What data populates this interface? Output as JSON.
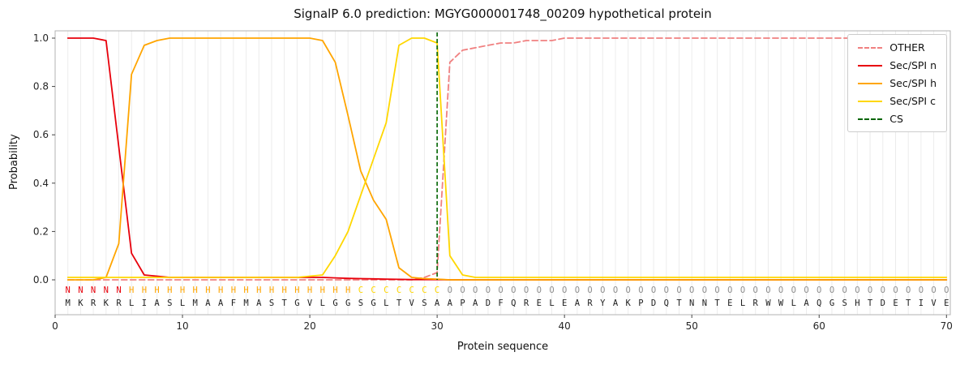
{
  "title": "SignalP 6.0 prediction: MGYG000001748_00209 hypothetical protein",
  "axes": {
    "xlabel": "Protein sequence",
    "ylabel": "Probability",
    "xticks": [
      0,
      10,
      20,
      30,
      40,
      50,
      60,
      70
    ],
    "yticks": [
      "0.0",
      "0.2",
      "0.4",
      "0.6",
      "0.8",
      "1.0"
    ]
  },
  "colors": {
    "other": "#f08080",
    "n": "#e8000b",
    "h": "#ffa500",
    "c": "#ffd700",
    "cs": "#006400",
    "seq_text": "#1f1f1f",
    "grid": "#ececec",
    "spine": "#b3b3b3"
  },
  "region_colors": {
    "N": "#e8000b",
    "H": "#ffa500",
    "C": "#ffd700",
    "O": "#909090"
  },
  "sequence": "MKRKRLIASLMAAFMASTGVLGGSGLTVSAAPADFQRELEARYAKPDQTNNTELRWWLAQGSHTDETIVE",
  "region_labels": "NNNNNHHHHHHHHHHHHHHHHHHCCCCCCCOOOOOOOOOOOOOOOOOOOOOOOOOOOOOOOOOOOOOOOO",
  "legend": [
    {
      "label": "OTHER",
      "color": "#f08080",
      "dashed": true
    },
    {
      "label": "Sec/SPI n",
      "color": "#e8000b",
      "dashed": false
    },
    {
      "label": "Sec/SPI h",
      "color": "#ffa500",
      "dashed": false
    },
    {
      "label": "Sec/SPI c",
      "color": "#ffd700",
      "dashed": false
    },
    {
      "label": "CS",
      "color": "#006400",
      "dashed": true
    }
  ],
  "chart_data": {
    "type": "line",
    "title": "SignalP 6.0 prediction: MGYG000001748_00209 hypothetical protein",
    "xlabel": "Protein sequence",
    "ylabel": "Probability",
    "xlim": [
      0,
      70.3
    ],
    "ylim": [
      -0.14,
      1.03
    ],
    "grid": "vertical line at every residue position",
    "legend_position": "upper right",
    "cs_position": 30,
    "x": [
      1,
      2,
      3,
      4,
      5,
      6,
      7,
      8,
      9,
      10,
      11,
      12,
      13,
      14,
      15,
      16,
      17,
      18,
      19,
      20,
      21,
      22,
      23,
      24,
      25,
      26,
      27,
      28,
      29,
      30,
      31,
      32,
      33,
      34,
      35,
      36,
      37,
      38,
      39,
      40,
      41,
      42,
      43,
      44,
      45,
      46,
      47,
      48,
      49,
      50,
      51,
      52,
      53,
      54,
      55,
      56,
      57,
      58,
      59,
      60,
      61,
      62,
      63,
      64,
      65,
      66,
      67,
      68,
      69,
      70
    ],
    "series": [
      {
        "name": "OTHER",
        "color": "#f08080",
        "style": "dashed",
        "values": [
          0,
          0,
          0,
          0,
          0,
          0,
          0,
          0,
          0,
          0,
          0,
          0,
          0,
          0,
          0,
          0,
          0,
          0,
          0,
          0,
          0,
          0,
          0,
          0,
          0,
          0,
          0,
          0,
          0.01,
          0.03,
          0.9,
          0.95,
          0.96,
          0.97,
          0.98,
          0.98,
          0.99,
          0.99,
          0.99,
          1.0,
          1.0,
          1.0,
          1.0,
          1.0,
          1.0,
          1.0,
          1.0,
          1.0,
          1.0,
          1.0,
          1.0,
          1.0,
          1.0,
          1.0,
          1.0,
          1.0,
          1.0,
          1.0,
          1.0,
          1.0,
          1.0,
          1.0,
          1.0,
          1.0,
          1.0,
          1.0,
          1.0,
          1.0,
          1.0,
          1.0
        ]
      },
      {
        "name": "Sec/SPI n",
        "color": "#e8000b",
        "style": "solid",
        "values": [
          1.0,
          1.0,
          1.0,
          0.99,
          0.55,
          0.11,
          0.02,
          0.015,
          0.01,
          0.01,
          0.01,
          0.01,
          0.01,
          0.01,
          0.01,
          0.01,
          0.01,
          0.01,
          0.01,
          0.01,
          0.01,
          0.008,
          0.006,
          0.005,
          0.004,
          0.003,
          0.002,
          0.001,
          0.001,
          0.001,
          0,
          0,
          0,
          0,
          0,
          0,
          0,
          0,
          0,
          0,
          0,
          0,
          0,
          0,
          0,
          0,
          0,
          0,
          0,
          0,
          0,
          0,
          0,
          0,
          0,
          0,
          0,
          0,
          0,
          0,
          0,
          0,
          0,
          0,
          0,
          0,
          0,
          0,
          0,
          0
        ]
      },
      {
        "name": "Sec/SPI h",
        "color": "#ffa500",
        "style": "solid",
        "values": [
          0,
          0,
          0,
          0.01,
          0.15,
          0.85,
          0.97,
          0.99,
          1.0,
          1.0,
          1.0,
          1.0,
          1.0,
          1.0,
          1.0,
          1.0,
          1.0,
          1.0,
          1.0,
          1.0,
          0.99,
          0.9,
          0.68,
          0.45,
          0.33,
          0.25,
          0.05,
          0.01,
          0.005,
          0.003,
          0,
          0,
          0,
          0,
          0,
          0,
          0,
          0,
          0,
          0,
          0,
          0,
          0,
          0,
          0,
          0,
          0,
          0,
          0,
          0,
          0,
          0,
          0,
          0,
          0,
          0,
          0,
          0,
          0,
          0,
          0,
          0,
          0,
          0,
          0,
          0,
          0,
          0,
          0,
          0
        ]
      },
      {
        "name": "Sec/SPI c",
        "color": "#ffd700",
        "style": "solid",
        "values": [
          0.01,
          0.01,
          0.01,
          0.01,
          0.01,
          0.01,
          0.01,
          0.01,
          0.01,
          0.01,
          0.01,
          0.01,
          0.01,
          0.01,
          0.01,
          0.01,
          0.01,
          0.01,
          0.01,
          0.015,
          0.02,
          0.1,
          0.2,
          0.35,
          0.5,
          0.65,
          0.97,
          1.0,
          1.0,
          0.98,
          0.1,
          0.02,
          0.01,
          0.01,
          0.01,
          0.01,
          0.01,
          0.01,
          0.01,
          0.01,
          0.01,
          0.01,
          0.01,
          0.01,
          0.01,
          0.01,
          0.01,
          0.01,
          0.01,
          0.01,
          0.01,
          0.01,
          0.01,
          0.01,
          0.01,
          0.01,
          0.01,
          0.01,
          0.01,
          0.01,
          0.01,
          0.01,
          0.01,
          0.01,
          0.01,
          0.01,
          0.01,
          0.01,
          0.01,
          0.01
        ]
      }
    ]
  }
}
